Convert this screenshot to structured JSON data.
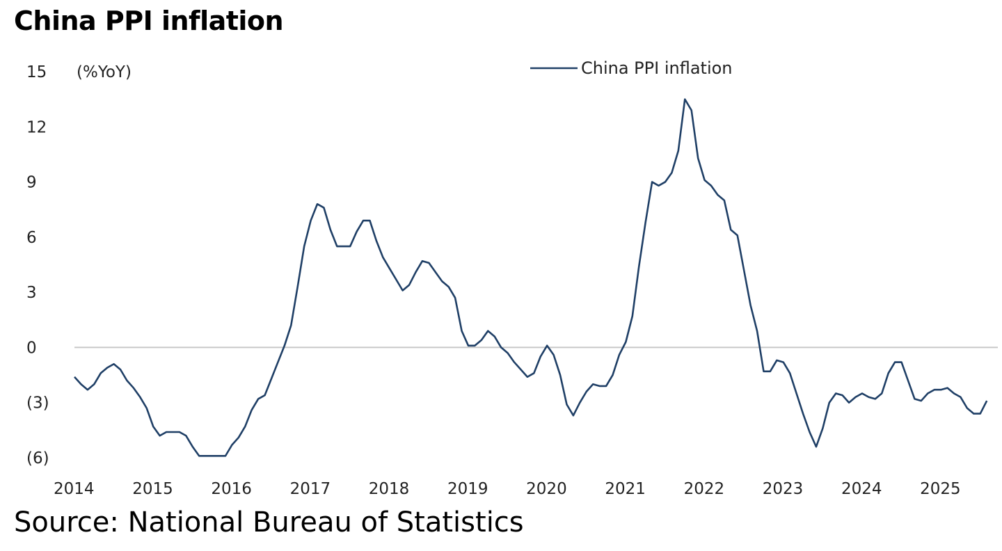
{
  "title": "China PPI inflation",
  "source": "Source: National Bureau of Statistics",
  "colors": {
    "line": "#1f3f66",
    "zero_line": "#c8c8c8"
  },
  "chart_data": {
    "type": "line",
    "title": "China PPI inflation",
    "ylabel": "(%YoY)",
    "xlabel": "",
    "ylim": [
      -6,
      15
    ],
    "xlim": [
      2014,
      2025.67
    ],
    "grid": false,
    "zero_line": true,
    "legend_position": "top",
    "y_ticks": [
      {
        "value": 15,
        "label": "15"
      },
      {
        "value": 12,
        "label": "12"
      },
      {
        "value": 9,
        "label": "9"
      },
      {
        "value": 6,
        "label": "6"
      },
      {
        "value": 3,
        "label": "3"
      },
      {
        "value": 0,
        "label": "0"
      },
      {
        "value": -3,
        "label": "(3)"
      },
      {
        "value": -6,
        "label": "(6)"
      }
    ],
    "x_ticks": [
      {
        "value": 2014,
        "label": "2014"
      },
      {
        "value": 2015,
        "label": "2015"
      },
      {
        "value": 2016,
        "label": "2016"
      },
      {
        "value": 2017,
        "label": "2017"
      },
      {
        "value": 2018,
        "label": "2018"
      },
      {
        "value": 2019,
        "label": "2019"
      },
      {
        "value": 2020,
        "label": "2020"
      },
      {
        "value": 2021,
        "label": "2021"
      },
      {
        "value": 2022,
        "label": "2022"
      },
      {
        "value": 2023,
        "label": "2023"
      },
      {
        "value": 2024,
        "label": "2024"
      },
      {
        "value": 2025,
        "label": "2025"
      }
    ],
    "series": [
      {
        "name": "China PPI inflation",
        "start": [
          2014,
          1
        ],
        "frequency": "monthly",
        "values": [
          -1.6,
          -2.0,
          -2.3,
          -2.0,
          -1.4,
          -1.1,
          -0.9,
          -1.2,
          -1.8,
          -2.2,
          -2.7,
          -3.3,
          -4.3,
          -4.8,
          -4.6,
          -4.6,
          -4.6,
          -4.8,
          -5.4,
          -5.9,
          -5.9,
          -5.9,
          -5.9,
          -5.9,
          -5.3,
          -4.9,
          -4.3,
          -3.4,
          -2.8,
          -2.6,
          -1.7,
          -0.8,
          0.1,
          1.2,
          3.3,
          5.5,
          6.9,
          7.8,
          7.6,
          6.4,
          5.5,
          5.5,
          5.5,
          6.3,
          6.9,
          6.9,
          5.8,
          4.9,
          4.3,
          3.7,
          3.1,
          3.4,
          4.1,
          4.7,
          4.6,
          4.1,
          3.6,
          3.3,
          2.7,
          0.9,
          0.1,
          0.1,
          0.4,
          0.9,
          0.6,
          0.0,
          -0.3,
          -0.8,
          -1.2,
          -1.6,
          -1.4,
          -0.5,
          0.1,
          -0.4,
          -1.5,
          -3.1,
          -3.7,
          -3.0,
          -2.4,
          -2.0,
          -2.1,
          -2.1,
          -1.5,
          -0.4,
          0.3,
          1.7,
          4.4,
          6.8,
          9.0,
          8.8,
          9.0,
          9.5,
          10.7,
          13.5,
          12.9,
          10.3,
          9.1,
          8.8,
          8.3,
          8.0,
          6.4,
          6.1,
          4.2,
          2.3,
          0.9,
          -1.3,
          -1.3,
          -0.7,
          -0.8,
          -1.4,
          -2.5,
          -3.6,
          -4.6,
          -5.4,
          -4.4,
          -3.0,
          -2.5,
          -2.6,
          -3.0,
          -2.7,
          -2.5,
          -2.7,
          -2.8,
          -2.5,
          -1.4,
          -0.8,
          -0.8,
          -1.8,
          -2.8,
          -2.9,
          -2.5,
          -2.3,
          -2.3,
          -2.2,
          -2.5,
          -2.7,
          -3.3,
          -3.6,
          -3.6,
          -2.9
        ]
      }
    ]
  }
}
